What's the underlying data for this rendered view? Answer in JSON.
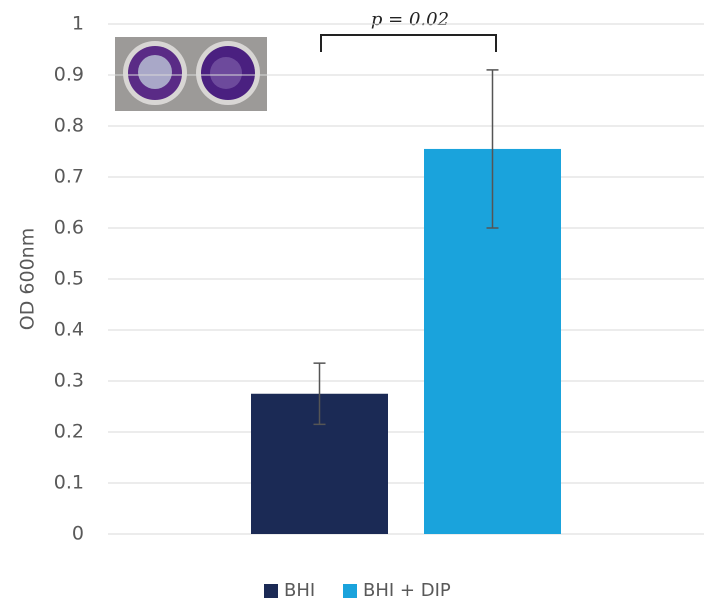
{
  "chart_data": {
    "type": "bar",
    "categories": [
      null
    ],
    "series": [
      {
        "name": "BHI",
        "color": "#1b2a55",
        "values": [
          0.275
        ],
        "errors": [
          0.06
        ]
      },
      {
        "name": "BHI + DIP",
        "color": "#1aa3dc",
        "values": [
          0.755
        ],
        "errors": [
          0.155
        ]
      }
    ],
    "y_label": "OD 600nm",
    "annotation": "p = 0.02",
    "ylim": [
      0,
      1
    ],
    "yticks": [
      0,
      0.1,
      0.2,
      0.3,
      0.4,
      0.5,
      0.6,
      0.7,
      0.8,
      0.9,
      1
    ],
    "grid": true,
    "legend": "bottom"
  }
}
